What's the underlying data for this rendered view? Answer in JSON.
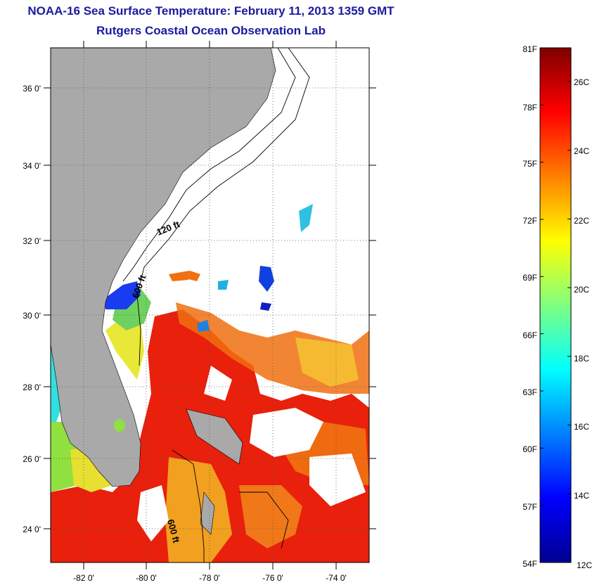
{
  "title": "NOAA-16 Sea Surface Temperature:  February 11, 2013 1359 GMT",
  "subtitle": "Rutgers Coastal Ocean Observation Lab",
  "map": {
    "lat_labels": [
      "36 0'",
      "34 0'",
      "32 0'",
      "30 0'",
      "28 0'",
      "26 0'",
      "24 0'"
    ],
    "lon_labels": [
      "-82 0'",
      "-80 0'",
      "-78 0'",
      "-76 0'",
      "-74 0'"
    ],
    "contour_labels": [
      "120 ft",
      "600 ft",
      "600 ft"
    ],
    "land_color": "#a9a9a9",
    "grid": "dotted"
  },
  "colorbar": {
    "f_labels": [
      "81F",
      "78F",
      "75F",
      "72F",
      "69F",
      "66F",
      "63F",
      "60F",
      "57F",
      "54F"
    ],
    "c_labels": [
      "26C",
      "24C",
      "22C",
      "20C",
      "18C",
      "16C",
      "14C",
      "12C"
    ],
    "range_f": [
      54,
      81
    ],
    "range_c": [
      12,
      27
    ],
    "colormap": "jet"
  }
}
